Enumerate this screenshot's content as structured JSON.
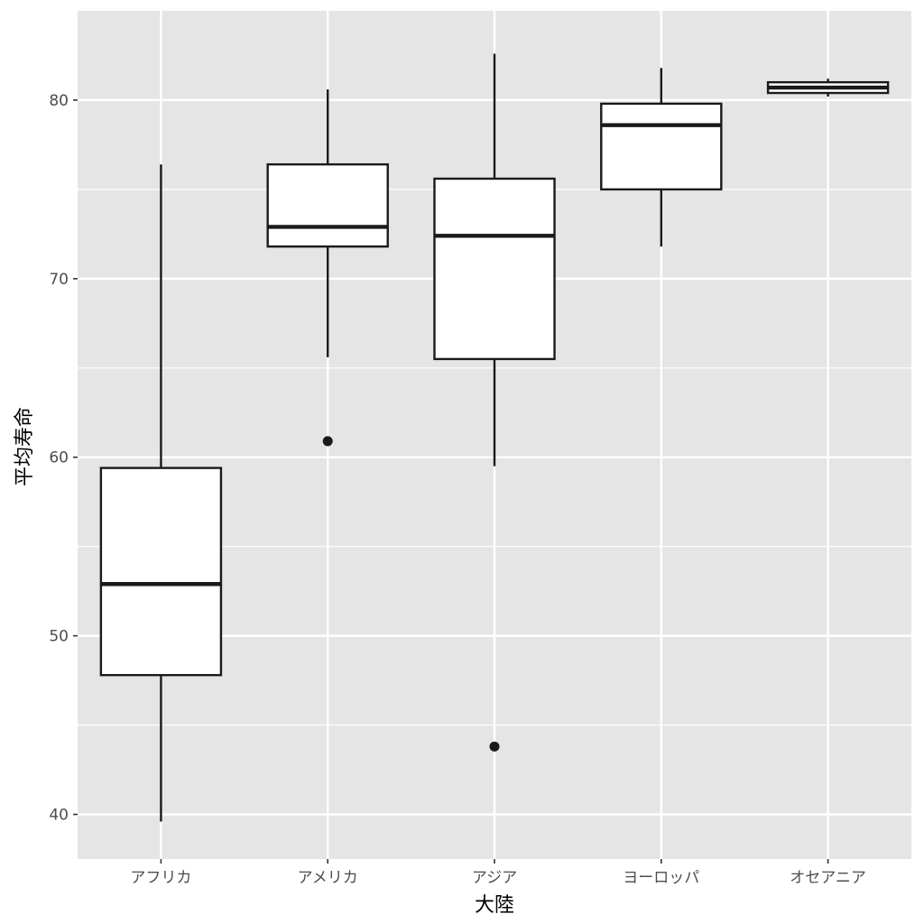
{
  "chart_data": {
    "type": "box",
    "xlabel": "大陸",
    "ylabel": "平均寿命",
    "ylim": [
      37.5,
      85
    ],
    "y_ticks": [
      40,
      50,
      60,
      70,
      80
    ],
    "grid": true,
    "colors": {
      "panel_background": "#e5e5e5",
      "grid": "#ffffff",
      "box_fill": "#ffffff",
      "box_stroke": "#1a1a1a",
      "tick_text": "#4d4d4d"
    },
    "categories": [
      "アフリカ",
      "アメリカ",
      "アジア",
      "ヨーロッパ",
      "オセアニア"
    ],
    "boxes": [
      {
        "category": "アフリカ",
        "whisker_low": 39.6,
        "q1": 47.8,
        "median": 52.9,
        "q3": 59.4,
        "whisker_high": 76.4,
        "outliers": []
      },
      {
        "category": "アメリカ",
        "whisker_low": 65.6,
        "q1": 71.8,
        "median": 72.9,
        "q3": 76.4,
        "whisker_high": 80.6,
        "outliers": [
          60.9
        ]
      },
      {
        "category": "アジア",
        "whisker_low": 59.5,
        "q1": 65.5,
        "median": 72.4,
        "q3": 75.6,
        "whisker_high": 82.6,
        "outliers": [
          43.8
        ]
      },
      {
        "category": "ヨーロッパ",
        "whisker_low": 71.8,
        "q1": 75.0,
        "median": 78.6,
        "q3": 79.8,
        "whisker_high": 81.8,
        "outliers": []
      },
      {
        "category": "オセアニア",
        "whisker_low": 80.2,
        "q1": 80.4,
        "median": 80.7,
        "q3": 81.0,
        "whisker_high": 81.2,
        "outliers": []
      }
    ]
  }
}
